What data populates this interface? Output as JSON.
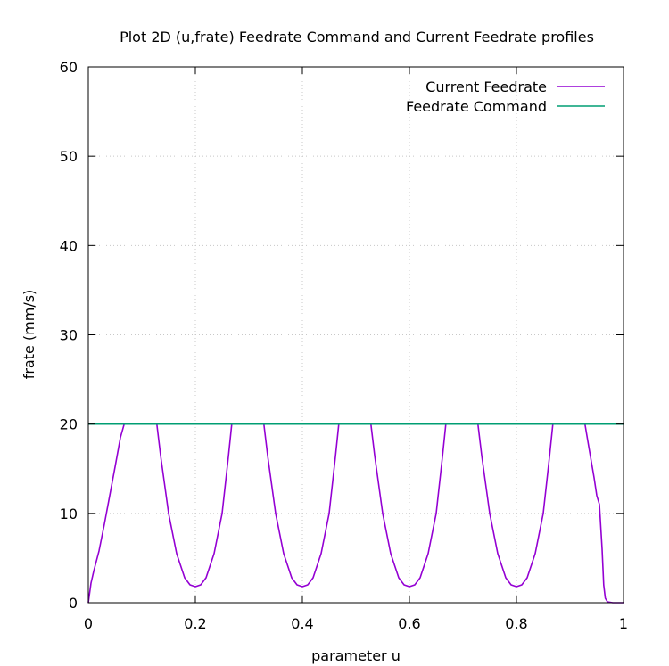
{
  "chart_data": {
    "type": "line",
    "title": "Plot 2D (u,frate) Feedrate Command and Current Feedrate profiles",
    "xlabel": "parameter u",
    "ylabel": "frate (mm/s)",
    "xlim": [
      0,
      1
    ],
    "ylim": [
      0,
      60
    ],
    "xticks": [
      0,
      0.2,
      0.4,
      0.6,
      0.8,
      1
    ],
    "xtick_labels": [
      "0",
      "0.2",
      "0.4",
      "0.6",
      "0.8",
      "1"
    ],
    "yticks": [
      0,
      10,
      20,
      30,
      40,
      50,
      60
    ],
    "ytick_labels": [
      "0",
      "10",
      "20",
      "30",
      "40",
      "50",
      "60"
    ],
    "grid": true,
    "legend_position": "top-right",
    "series": [
      {
        "name": "Current Feedrate",
        "color": "#9400d3",
        "x": [
          0,
          0.005,
          0.01,
          0.02,
          0.03,
          0.04,
          0.05,
          0.06,
          0.067,
          0.128,
          0.135,
          0.15,
          0.165,
          0.18,
          0.19,
          0.2,
          0.21,
          0.22,
          0.235,
          0.25,
          0.262,
          0.268,
          0.328,
          0.335,
          0.35,
          0.365,
          0.38,
          0.39,
          0.4,
          0.41,
          0.42,
          0.435,
          0.45,
          0.462,
          0.468,
          0.528,
          0.535,
          0.55,
          0.565,
          0.58,
          0.59,
          0.6,
          0.61,
          0.62,
          0.635,
          0.65,
          0.662,
          0.668,
          0.728,
          0.735,
          0.75,
          0.765,
          0.78,
          0.79,
          0.8,
          0.81,
          0.82,
          0.835,
          0.85,
          0.862,
          0.868,
          0.928,
          0.935,
          0.945,
          0.95,
          0.955,
          0.96,
          0.963,
          0.966,
          0.97,
          0.98,
          1.0
        ],
        "y": [
          0,
          2.2,
          3.5,
          5.8,
          8.8,
          12.0,
          15.2,
          18.5,
          20,
          20,
          16.5,
          10.0,
          5.5,
          2.8,
          2.0,
          1.8,
          2.0,
          2.8,
          5.5,
          10.0,
          16.5,
          20,
          20,
          16.5,
          10.0,
          5.5,
          2.8,
          2.0,
          1.8,
          2.0,
          2.8,
          5.5,
          10.0,
          16.5,
          20,
          20,
          16.5,
          10.0,
          5.5,
          2.8,
          2.0,
          1.8,
          2.0,
          2.8,
          5.5,
          10.0,
          16.5,
          20,
          20,
          16.5,
          10.0,
          5.5,
          2.8,
          2.0,
          1.8,
          2.0,
          2.8,
          5.5,
          10.0,
          16.5,
          20,
          20,
          17.5,
          14.0,
          12.0,
          11.0,
          6.0,
          2.0,
          0.5,
          0.1,
          0,
          0
        ]
      },
      {
        "name": "Feedrate Command",
        "color": "#009e73",
        "x": [
          0,
          1
        ],
        "y": [
          20,
          20
        ]
      }
    ]
  }
}
